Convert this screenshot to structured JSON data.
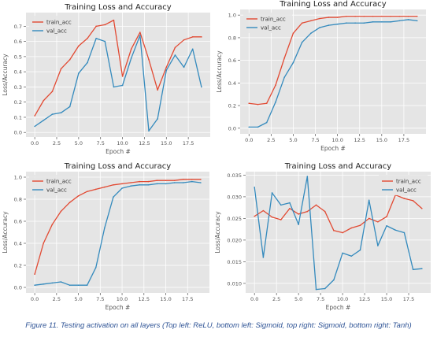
{
  "caption": "Figure 11. Testing activation on all layers (Top left: ReLU, bottom left: Sigmoid, top right: Sigmoid, bottom right: Tanh)",
  "colors": {
    "train": "#e24a33",
    "val": "#348abd",
    "plot_bg": "#e5e5e5",
    "grid": "#ffffff",
    "caption": "#2f5496"
  },
  "chart_data": [
    {
      "id": "top-left",
      "type": "line",
      "title": "Training Loss and Accuracy",
      "xlabel": "Epoch #",
      "ylabel": "Loss/Accuracy",
      "grid": true,
      "legend_loc": "top-left",
      "xlim": [
        -1,
        20
      ],
      "ylim": [
        -0.03,
        0.79
      ],
      "xticks": [
        0,
        2.5,
        5,
        7.5,
        10,
        12.5,
        15,
        17.5
      ],
      "xtick_labels": [
        "0.0",
        "2.5",
        "5.0",
        "7.5",
        "10.0",
        "12.5",
        "15.0",
        "17.5"
      ],
      "yticks": [
        0,
        0.1,
        0.2,
        0.3,
        0.4,
        0.5,
        0.6,
        0.7
      ],
      "ytick_labels": [
        "0.0",
        "0.1",
        "0.2",
        "0.3",
        "0.4",
        "0.5",
        "0.6",
        "0.7"
      ],
      "x": [
        0,
        1,
        2,
        3,
        4,
        5,
        6,
        7,
        8,
        9,
        10,
        11,
        12,
        13,
        14,
        15,
        16,
        17,
        18,
        19
      ],
      "series": [
        {
          "name": "train_acc",
          "key": "train",
          "values": [
            0.11,
            0.21,
            0.27,
            0.42,
            0.48,
            0.57,
            0.62,
            0.7,
            0.71,
            0.74,
            0.37,
            0.55,
            0.66,
            0.48,
            0.28,
            0.43,
            0.56,
            0.61,
            0.63,
            0.63
          ]
        },
        {
          "name": "val_acc",
          "key": "val",
          "values": [
            0.04,
            0.08,
            0.12,
            0.13,
            0.17,
            0.39,
            0.46,
            0.62,
            0.6,
            0.3,
            0.31,
            0.49,
            0.64,
            0.01,
            0.09,
            0.41,
            0.51,
            0.43,
            0.55,
            0.3
          ]
        }
      ]
    },
    {
      "id": "top-right",
      "type": "line",
      "title": "Training Loss and Accuracy",
      "xlabel": "Epoch #",
      "ylabel": "Loss/Accuracy",
      "grid": true,
      "legend_loc": "top-left",
      "xlim": [
        -1,
        20
      ],
      "ylim": [
        -0.05,
        1.05
      ],
      "xticks": [
        0,
        2.5,
        5,
        7.5,
        10,
        12.5,
        15,
        17.5
      ],
      "xtick_labels": [
        "0.0",
        "2.5",
        "5.0",
        "7.5",
        "10.0",
        "12.5",
        "15.0",
        "17.5"
      ],
      "yticks": [
        0,
        0.2,
        0.4,
        0.6,
        0.8,
        1.0
      ],
      "ytick_labels": [
        "0.0",
        "0.2",
        "0.4",
        "0.6",
        "0.8",
        "1.0"
      ],
      "x": [
        0,
        1,
        2,
        3,
        4,
        5,
        6,
        7,
        8,
        9,
        10,
        11,
        12,
        13,
        14,
        15,
        16,
        17,
        18,
        19
      ],
      "series": [
        {
          "name": "train_acc",
          "key": "train",
          "values": [
            0.22,
            0.21,
            0.22,
            0.38,
            0.62,
            0.84,
            0.93,
            0.95,
            0.97,
            0.98,
            0.98,
            0.99,
            0.99,
            0.99,
            0.99,
            0.99,
            0.99,
            0.99,
            0.99,
            0.99
          ]
        },
        {
          "name": "val_acc",
          "key": "val",
          "values": [
            0.01,
            0.01,
            0.05,
            0.23,
            0.45,
            0.58,
            0.76,
            0.84,
            0.89,
            0.91,
            0.92,
            0.93,
            0.93,
            0.93,
            0.94,
            0.94,
            0.94,
            0.95,
            0.96,
            0.95
          ]
        }
      ]
    },
    {
      "id": "bottom-left",
      "type": "line",
      "title": "Training Loss and Accuracy",
      "xlabel": "Epoch #",
      "ylabel": "Loss/Accuracy",
      "grid": true,
      "legend_loc": "top-left",
      "xlim": [
        -1,
        20
      ],
      "ylim": [
        -0.05,
        1.05
      ],
      "xticks": [
        0,
        2.5,
        5,
        7.5,
        10,
        12.5,
        15,
        17.5
      ],
      "xtick_labels": [
        "0.0",
        "2.5",
        "5.0",
        "7.5",
        "10.0",
        "12.5",
        "15.0",
        "17.5"
      ],
      "yticks": [
        0,
        0.2,
        0.4,
        0.6,
        0.8,
        1.0
      ],
      "ytick_labels": [
        "0.0",
        "0.2",
        "0.4",
        "0.6",
        "0.8",
        "1.0"
      ],
      "x": [
        0,
        1,
        2,
        3,
        4,
        5,
        6,
        7,
        8,
        9,
        10,
        11,
        12,
        13,
        14,
        15,
        16,
        17,
        18,
        19
      ],
      "series": [
        {
          "name": "train_acc",
          "key": "train",
          "values": [
            0.12,
            0.4,
            0.57,
            0.69,
            0.77,
            0.83,
            0.87,
            0.89,
            0.91,
            0.93,
            0.94,
            0.95,
            0.96,
            0.96,
            0.97,
            0.97,
            0.97,
            0.98,
            0.98,
            0.98
          ]
        },
        {
          "name": "val_acc",
          "key": "val",
          "values": [
            0.02,
            0.03,
            0.04,
            0.05,
            0.02,
            0.02,
            0.02,
            0.18,
            0.54,
            0.82,
            0.9,
            0.92,
            0.93,
            0.93,
            0.94,
            0.94,
            0.95,
            0.95,
            0.96,
            0.95
          ]
        }
      ]
    },
    {
      "id": "bottom-right",
      "type": "line",
      "title": "Training Loss and Accuracy",
      "xlabel": "Epoch #",
      "ylabel": "Loss/Accuracy",
      "grid": true,
      "legend_loc": "top-right",
      "xlim": [
        -1,
        20
      ],
      "ylim": [
        0.0078,
        0.0358
      ],
      "xticks": [
        0,
        2.5,
        5,
        7.5,
        10,
        12.5,
        15,
        17.5
      ],
      "xtick_labels": [
        "0.0",
        "2.5",
        "5.0",
        "7.5",
        "10.0",
        "12.5",
        "15.0",
        "17.5"
      ],
      "yticks": [
        0.01,
        0.015,
        0.02,
        0.025,
        0.03,
        0.035
      ],
      "ytick_labels": [
        "0.010",
        "0.015",
        "0.020",
        "0.025",
        "0.030",
        "0.035"
      ],
      "x": [
        0,
        1,
        2,
        3,
        4,
        5,
        6,
        7,
        8,
        9,
        10,
        11,
        12,
        13,
        14,
        15,
        16,
        17,
        18,
        19
      ],
      "series": [
        {
          "name": "train_acc",
          "key": "train",
          "values": [
            0.0255,
            0.0268,
            0.0253,
            0.0247,
            0.0273,
            0.026,
            0.0266,
            0.0281,
            0.0266,
            0.0222,
            0.0217,
            0.0228,
            0.0234,
            0.025,
            0.0242,
            0.0254,
            0.0304,
            0.0296,
            0.0291,
            0.0273
          ]
        },
        {
          "name": "val_acc",
          "key": "val",
          "values": [
            0.0322,
            0.016,
            0.0309,
            0.0281,
            0.0286,
            0.0236,
            0.0347,
            0.0086,
            0.0088,
            0.0108,
            0.017,
            0.0163,
            0.0177,
            0.0292,
            0.0187,
            0.0233,
            0.0223,
            0.0217,
            0.0132,
            0.0134
          ]
        }
      ]
    }
  ]
}
